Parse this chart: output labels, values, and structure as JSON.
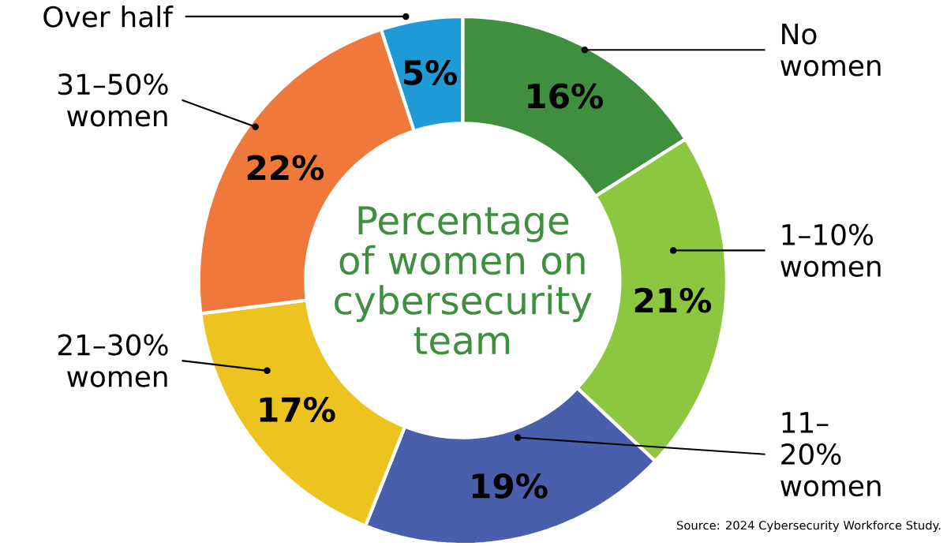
{
  "chart_data": {
    "type": "donut",
    "title": "Percentage of women on cybersecurity team",
    "categories": [
      "No women",
      "1–10% women",
      "11–20% women",
      "21–30% women",
      "31–50% women",
      "Over half"
    ],
    "values": [
      16,
      21,
      19,
      17,
      22,
      5
    ],
    "value_labels": [
      "16%",
      "21%",
      "19%",
      "17%",
      "22%",
      "5%"
    ],
    "colors": [
      "#3f8f3f",
      "#8dc63f",
      "#4a5fac",
      "#ecc31f",
      "#f0783a",
      "#1f9ad8"
    ],
    "annotations": [
      "Source: 2024 Cybersecurity Workforce Study."
    ]
  }
}
